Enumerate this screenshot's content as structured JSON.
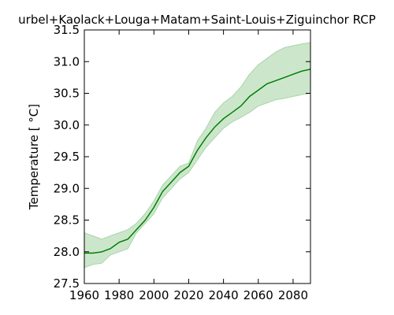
{
  "chart_data": {
    "type": "line",
    "title": "urbel+Kaolack+Louga+Matam+Saint-Louis+Ziguinchor RCP",
    "xlabel": "",
    "ylabel": "Temperature [ °C]",
    "xlim": [
      1960,
      2090
    ],
    "ylim": [
      27.5,
      31.5
    ],
    "xticks": [
      "1960",
      "1980",
      "2000",
      "2020",
      "2040",
      "2060",
      "2080"
    ],
    "yticks": [
      "27.5",
      "28.0",
      "28.5",
      "29.0",
      "29.5",
      "30.0",
      "30.5",
      "31.0",
      "31.5"
    ],
    "grid": false,
    "colors": {
      "line": "#007f00",
      "band": "#cce6cc",
      "band_edge": "#a8d5a8"
    },
    "series": [
      {
        "x": [
          1960,
          1965,
          1970,
          1975,
          1980,
          1985,
          1990,
          1995,
          2000,
          2005,
          2010,
          2015,
          2020,
          2025,
          2030,
          2035,
          2040,
          2045,
          2050,
          2055,
          2060,
          2065,
          2070,
          2075,
          2080,
          2085,
          2090
        ],
        "values": [
          27.98,
          27.98,
          28.0,
          28.05,
          28.15,
          28.2,
          28.35,
          28.5,
          28.7,
          28.95,
          29.1,
          29.25,
          29.35,
          29.6,
          29.8,
          29.97,
          30.1,
          30.2,
          30.3,
          30.45,
          30.55,
          30.65,
          30.7,
          30.75,
          30.8,
          30.85,
          30.88
        ],
        "lower": [
          27.75,
          27.8,
          27.82,
          27.95,
          28.0,
          28.05,
          28.3,
          28.45,
          28.6,
          28.85,
          29.0,
          29.15,
          29.25,
          29.45,
          29.65,
          29.8,
          29.95,
          30.05,
          30.12,
          30.2,
          30.3,
          30.35,
          30.4,
          30.42,
          30.45,
          30.48,
          30.5
        ],
        "upper": [
          28.3,
          28.25,
          28.2,
          28.25,
          28.3,
          28.35,
          28.45,
          28.6,
          28.8,
          29.05,
          29.2,
          29.35,
          29.4,
          29.75,
          29.95,
          30.2,
          30.35,
          30.45,
          30.6,
          30.8,
          30.95,
          31.05,
          31.15,
          31.22,
          31.25,
          31.28,
          31.3
        ]
      }
    ]
  }
}
